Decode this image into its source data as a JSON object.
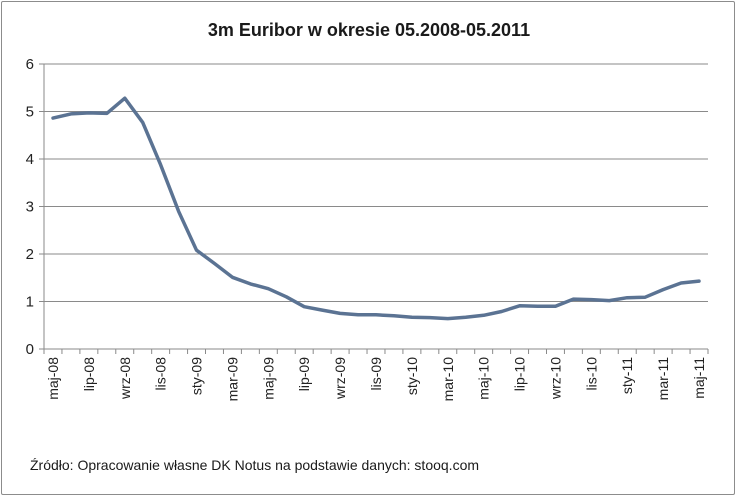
{
  "chart_data": {
    "type": "line",
    "title": "3m Euribor w okresie 05.2008-05.2011",
    "source": "Źródło: Opracowanie własne  DK Notus na podstawie danych: stooq.com",
    "xlabel": "",
    "ylabel": "",
    "ylim": [
      0,
      6
    ],
    "yticks": [
      "0",
      "1",
      "2",
      "3",
      "4",
      "5",
      "6"
    ],
    "grid": true,
    "x": [
      "maj-08",
      "cze-08",
      "lip-08",
      "sie-08",
      "wrz-08",
      "paź-08",
      "lis-08",
      "gru-08",
      "sty-09",
      "lut-09",
      "mar-09",
      "kwi-09",
      "maj-09",
      "cze-09",
      "lip-09",
      "sie-09",
      "wrz-09",
      "paź-09",
      "lis-09",
      "gru-09",
      "sty-10",
      "lut-10",
      "mar-10",
      "kwi-10",
      "maj-10",
      "cze-10",
      "lip-10",
      "sie-10",
      "wrz-10",
      "paź-10",
      "lis-10",
      "gru-10",
      "sty-11",
      "lut-11",
      "mar-11",
      "kwi-11",
      "maj-11"
    ],
    "tick_labels": [
      "maj-08",
      "lip-08",
      "wrz-08",
      "lis-08",
      "sty-09",
      "mar-09",
      "maj-09",
      "lip-09",
      "wrz-09",
      "lis-09",
      "sty-10",
      "mar-10",
      "maj-10",
      "lip-10",
      "wrz-10",
      "lis-10",
      "sty-11",
      "mar-11",
      "maj-11"
    ],
    "series": [
      {
        "name": "",
        "color": "#5b7393",
        "values": [
          4.86,
          4.95,
          4.97,
          4.96,
          5.28,
          4.77,
          3.88,
          2.9,
          2.08,
          1.8,
          1.51,
          1.37,
          1.27,
          1.1,
          0.89,
          0.82,
          0.75,
          0.72,
          0.72,
          0.7,
          0.67,
          0.66,
          0.64,
          0.67,
          0.71,
          0.79,
          0.91,
          0.9,
          0.9,
          1.05,
          1.04,
          1.02,
          1.08,
          1.09,
          1.25,
          1.39,
          1.43
        ]
      }
    ]
  }
}
